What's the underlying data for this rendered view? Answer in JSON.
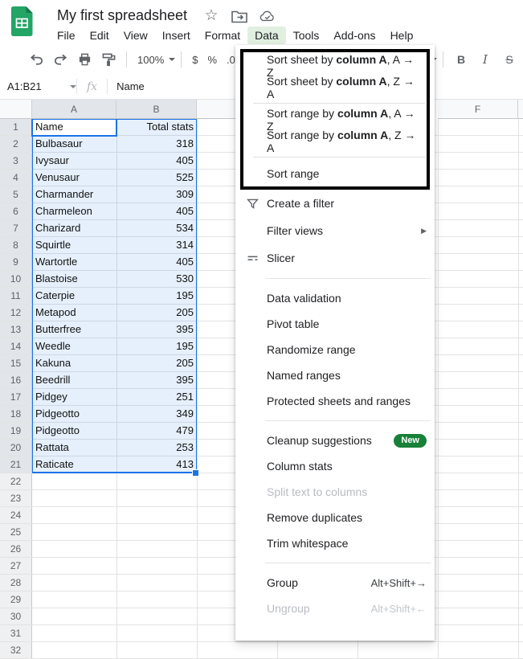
{
  "titlebar": {
    "title": "My first spreadsheet",
    "icons": [
      "star-icon",
      "move-folder-icon",
      "cloud-check-icon"
    ]
  },
  "menubar": {
    "items": [
      {
        "label": "File"
      },
      {
        "label": "Edit"
      },
      {
        "label": "View"
      },
      {
        "label": "Insert"
      },
      {
        "label": "Format"
      },
      {
        "label": "Data",
        "active": true
      },
      {
        "label": "Tools"
      },
      {
        "label": "Add-ons"
      },
      {
        "label": "Help"
      }
    ]
  },
  "toolbar": {
    "icons": [
      "undo-icon",
      "redo-icon",
      "print-icon",
      "paint-format-icon"
    ],
    "zoom": "100%",
    "currency": "$",
    "percent": "%",
    "decimal": ".0",
    "bold": "B",
    "italic": "I",
    "strikethrough": "S"
  },
  "formula_bar": {
    "name_box": "A1:B21",
    "fx": "fx",
    "content": "Name"
  },
  "sheet": {
    "col_headers": {
      "a": "A",
      "b": "B",
      "f": "F"
    },
    "rows": [
      {
        "n": "1",
        "a": "Name",
        "b": "Total stats"
      },
      {
        "n": "2",
        "a": "Bulbasaur",
        "b": "318"
      },
      {
        "n": "3",
        "a": "Ivysaur",
        "b": "405"
      },
      {
        "n": "4",
        "a": "Venusaur",
        "b": "525"
      },
      {
        "n": "5",
        "a": "Charmander",
        "b": "309"
      },
      {
        "n": "6",
        "a": "Charmeleon",
        "b": "405"
      },
      {
        "n": "7",
        "a": "Charizard",
        "b": "534"
      },
      {
        "n": "8",
        "a": "Squirtle",
        "b": "314"
      },
      {
        "n": "9",
        "a": "Wartortle",
        "b": "405"
      },
      {
        "n": "10",
        "a": "Blastoise",
        "b": "530"
      },
      {
        "n": "11",
        "a": "Caterpie",
        "b": "195"
      },
      {
        "n": "12",
        "a": "Metapod",
        "b": "205"
      },
      {
        "n": "13",
        "a": "Butterfree",
        "b": "395"
      },
      {
        "n": "14",
        "a": "Weedle",
        "b": "195"
      },
      {
        "n": "15",
        "a": "Kakuna",
        "b": "205"
      },
      {
        "n": "16",
        "a": "Beedrill",
        "b": "395"
      },
      {
        "n": "17",
        "a": "Pidgey",
        "b": "251"
      },
      {
        "n": "18",
        "a": "Pidgeotto",
        "b": "349"
      },
      {
        "n": "19",
        "a": "Pidgeotto",
        "b": "479"
      },
      {
        "n": "20",
        "a": "Rattata",
        "b": "253"
      },
      {
        "n": "21",
        "a": "Raticate",
        "b": "413"
      },
      {
        "n": "22",
        "a": "",
        "b": ""
      },
      {
        "n": "23",
        "a": "",
        "b": ""
      },
      {
        "n": "24",
        "a": "",
        "b": ""
      },
      {
        "n": "25",
        "a": "",
        "b": ""
      },
      {
        "n": "26",
        "a": "",
        "b": ""
      },
      {
        "n": "27",
        "a": "",
        "b": ""
      },
      {
        "n": "28",
        "a": "",
        "b": ""
      },
      {
        "n": "29",
        "a": "",
        "b": ""
      },
      {
        "n": "30",
        "a": "",
        "b": ""
      },
      {
        "n": "31",
        "a": "",
        "b": ""
      },
      {
        "n": "32",
        "a": "",
        "b": ""
      }
    ],
    "selected_range": "A1:B21"
  },
  "data_menu": {
    "sort_items": [
      {
        "prefix": "Sort sheet by ",
        "bold": "column A",
        "suffix": ", A → Z"
      },
      {
        "prefix": "Sort sheet by ",
        "bold": "column A",
        "suffix": ", Z → A"
      },
      {
        "divider": true
      },
      {
        "prefix": "Sort range by ",
        "bold": "column A",
        "suffix": ", A → Z"
      },
      {
        "prefix": "Sort range by ",
        "bold": "column A",
        "suffix": ", Z → A"
      },
      {
        "divider": true
      },
      {
        "label": "Sort range"
      }
    ],
    "items": [
      {
        "label": "Create a filter",
        "icon": "filter-icon"
      },
      {
        "label": "Filter views",
        "submenu": true
      },
      {
        "label": "Slicer",
        "icon": "slicer-icon"
      },
      {
        "divider": true
      },
      {
        "label": "Data validation"
      },
      {
        "label": "Pivot table"
      },
      {
        "label": "Randomize range"
      },
      {
        "label": "Named ranges"
      },
      {
        "label": "Protected sheets and ranges"
      },
      {
        "divider": true
      },
      {
        "label": "Cleanup suggestions",
        "badge": "New"
      },
      {
        "label": "Column stats"
      },
      {
        "label": "Split text to columns",
        "disabled": true
      },
      {
        "label": "Remove duplicates"
      },
      {
        "label": "Trim whitespace"
      },
      {
        "divider": true
      },
      {
        "label": "Group",
        "shortcut": "Alt+Shift+→"
      },
      {
        "label": "Ungroup",
        "shortcut": "Alt+Shift+←",
        "disabled": true
      }
    ]
  },
  "colors": {
    "accent": "#1a73e8",
    "selection_fill": "#e7effc",
    "badge_green": "#188038",
    "active_menu_bg": "#e1efe0",
    "logo_green": "#23a566"
  }
}
